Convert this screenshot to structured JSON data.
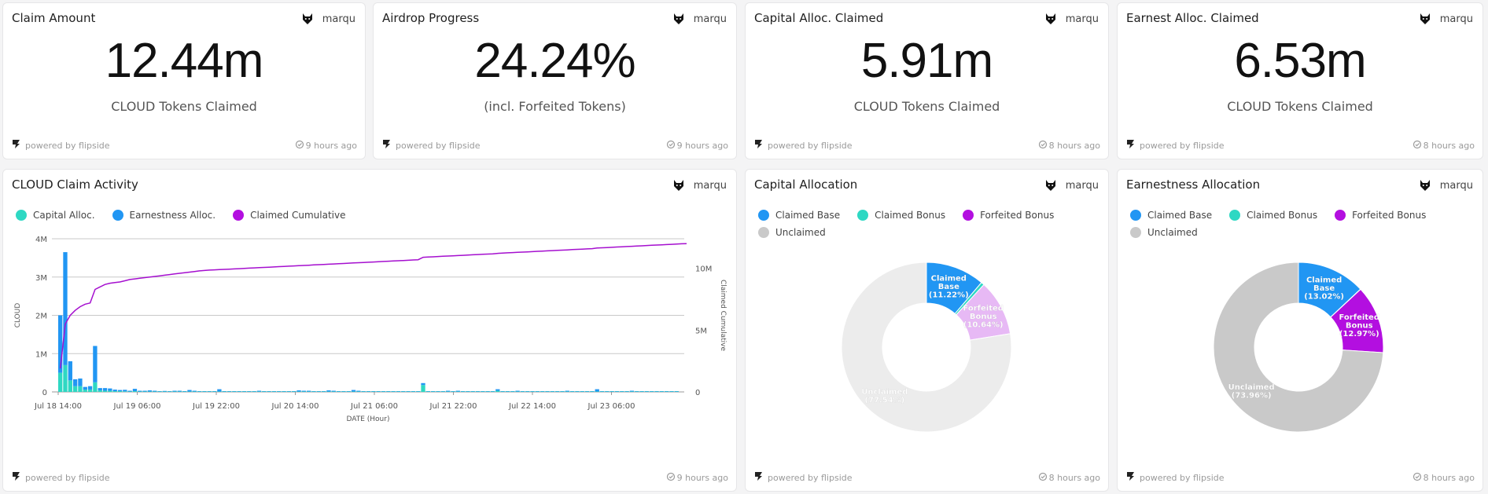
{
  "author": "marqu",
  "powered_by": "powered by flipside",
  "kpis": [
    {
      "title": "Claim Amount",
      "value": "12.44m",
      "subtitle": "CLOUD Tokens Claimed",
      "time": "9 hours ago"
    },
    {
      "title": "Airdrop Progress",
      "value": "24.24%",
      "subtitle": "(incl. Forfeited Tokens)",
      "time": "9 hours ago"
    },
    {
      "title": "Capital Alloc. Claimed",
      "value": "5.91m",
      "subtitle": "CLOUD Tokens Claimed",
      "time": "8 hours ago"
    },
    {
      "title": "Earnest Alloc. Claimed",
      "value": "6.53m",
      "subtitle": "CLOUD Tokens Claimed",
      "time": "8 hours ago"
    }
  ],
  "activity": {
    "title": "CLOUD Claim Activity",
    "time": "9 hours ago",
    "legend": [
      {
        "label": "Capital Alloc.",
        "color": "#2ed8c3"
      },
      {
        "label": "Earnestness Alloc.",
        "color": "#2196f3"
      },
      {
        "label": "Claimed Cumulative",
        "color": "#b30fe0"
      }
    ]
  },
  "capital": {
    "title": "Capital Allocation",
    "time": "8 hours ago",
    "legend": [
      {
        "label": "Claimed Base",
        "color": "#2196f3"
      },
      {
        "label": "Claimed Bonus",
        "color": "#2ed8c3"
      },
      {
        "label": "Forfeited Bonus",
        "color": "#b30fe0"
      },
      {
        "label": "Unclaimed",
        "color": "#c9c9c9"
      }
    ]
  },
  "earnest": {
    "title": "Earnestness Allocation",
    "time": "8 hours ago",
    "legend": [
      {
        "label": "Claimed Base",
        "color": "#2196f3"
      },
      {
        "label": "Claimed Bonus",
        "color": "#2ed8c3"
      },
      {
        "label": "Forfeited Bonus",
        "color": "#b30fe0"
      },
      {
        "label": "Unclaimed",
        "color": "#c9c9c9"
      }
    ]
  },
  "chart_data": [
    {
      "type": "bar",
      "title": "CLOUD Claim Activity",
      "xlabel": "DATE (Hour)",
      "ylabel": "CLOUD",
      "y2label": "Claimed Cumulative",
      "ylim": [
        0,
        4000000
      ],
      "y2lim": [
        0,
        12400000
      ],
      "yticks": [
        "0",
        "1M",
        "2M",
        "3M",
        "4M"
      ],
      "y2ticks": [
        "0",
        "5M",
        "10M"
      ],
      "xticks": [
        "Jul 18 14:00",
        "Jul 19 06:00",
        "Jul 19 22:00",
        "Jul 20 14:00",
        "Jul 21 06:00",
        "Jul 21 22:00",
        "Jul 22 14:00",
        "Jul 23 06:00"
      ],
      "grid": true,
      "legend": "top-left",
      "series": [
        {
          "name": "Capital Alloc.",
          "values": [
            500000,
            700000,
            300000,
            150000,
            150000,
            60000,
            60000,
            250000,
            40000,
            30000,
            30000,
            20000,
            20000,
            15000,
            10000,
            20000,
            10000,
            10000,
            10000,
            10000,
            10000,
            10000,
            10000,
            10000,
            10000,
            10000,
            10000,
            10000,
            10000,
            10000,
            10000,
            10000,
            10000,
            10000,
            10000,
            10000,
            10000,
            10000,
            10000,
            10000,
            10000,
            10000,
            10000,
            10000,
            10000,
            10000,
            10000,
            10000,
            10000,
            10000,
            10000,
            10000,
            10000,
            10000,
            10000,
            10000,
            10000,
            10000,
            10000,
            10000,
            10000,
            10000,
            10000,
            10000,
            10000,
            10000,
            10000,
            10000,
            10000,
            10000,
            10000,
            10000,
            10000,
            180000,
            10000,
            10000,
            10000,
            10000,
            10000,
            10000,
            10000,
            10000,
            10000,
            10000,
            10000,
            10000,
            10000,
            10000,
            30000,
            10000,
            10000,
            10000,
            10000,
            10000,
            10000,
            10000,
            10000,
            10000,
            10000,
            10000,
            10000,
            10000,
            10000,
            10000,
            10000,
            10000,
            10000,
            10000,
            10000,
            10000,
            10000,
            10000,
            10000,
            10000,
            10000,
            10000,
            10000,
            10000,
            10000,
            10000,
            10000,
            10000,
            10000,
            10000,
            10000
          ]
        },
        {
          "name": "Earnestness Alloc.",
          "values": [
            1500000,
            2950000,
            500000,
            180000,
            200000,
            70000,
            90000,
            950000,
            60000,
            70000,
            60000,
            40000,
            30000,
            40000,
            20000,
            60000,
            20000,
            20000,
            30000,
            20000,
            10000,
            15000,
            10000,
            20000,
            20000,
            10000,
            40000,
            20000,
            10000,
            10000,
            10000,
            10000,
            60000,
            10000,
            10000,
            10000,
            10000,
            10000,
            10000,
            10000,
            20000,
            10000,
            10000,
            10000,
            10000,
            10000,
            10000,
            10000,
            30000,
            20000,
            20000,
            10000,
            10000,
            10000,
            30000,
            20000,
            10000,
            10000,
            10000,
            40000,
            20000,
            10000,
            10000,
            10000,
            10000,
            10000,
            10000,
            10000,
            10000,
            10000,
            10000,
            10000,
            10000,
            50000,
            10000,
            10000,
            10000,
            10000,
            20000,
            10000,
            20000,
            10000,
            10000,
            10000,
            10000,
            10000,
            10000,
            10000,
            40000,
            10000,
            10000,
            10000,
            20000,
            10000,
            10000,
            10000,
            10000,
            10000,
            10000,
            10000,
            10000,
            10000,
            20000,
            10000,
            10000,
            10000,
            10000,
            10000,
            60000,
            10000,
            10000,
            10000,
            10000,
            10000,
            10000,
            20000,
            10000,
            10000,
            10000,
            10000,
            10000,
            10000,
            10000,
            10000,
            10000,
            10000,
            10000
          ]
        },
        {
          "name": "Claimed Cumulative",
          "values": [
            1900000,
            5500000,
            6200000,
            6600000,
            6900000,
            7100000,
            7200000,
            8300000,
            8500000,
            8700000,
            8800000,
            8850000,
            8900000,
            9000000,
            9100000,
            9150000,
            9200000,
            9250000,
            9300000,
            9350000,
            9400000,
            9450000,
            9500000,
            9550000,
            9600000,
            9650000,
            9700000,
            9750000,
            9800000,
            9830000,
            9860000,
            9880000,
            9900000,
            9920000,
            9940000,
            9960000,
            9980000,
            10000000,
            10020000,
            10040000,
            10060000,
            10080000,
            10100000,
            10120000,
            10140000,
            10160000,
            10180000,
            10200000,
            10220000,
            10240000,
            10260000,
            10280000,
            10300000,
            10320000,
            10340000,
            10360000,
            10380000,
            10400000,
            10420000,
            10440000,
            10460000,
            10480000,
            10500000,
            10520000,
            10540000,
            10560000,
            10580000,
            10600000,
            10620000,
            10640000,
            10660000,
            10680000,
            10700000,
            10900000,
            10920000,
            10940000,
            10960000,
            10980000,
            11000000,
            11020000,
            11040000,
            11060000,
            11080000,
            11100000,
            11120000,
            11140000,
            11160000,
            11180000,
            11220000,
            11240000,
            11260000,
            11280000,
            11300000,
            11320000,
            11340000,
            11360000,
            11380000,
            11400000,
            11420000,
            11440000,
            11460000,
            11480000,
            11500000,
            11520000,
            11540000,
            11560000,
            11580000,
            11600000,
            11650000,
            11670000,
            11690000,
            11710000,
            11730000,
            11750000,
            11770000,
            11790000,
            11810000,
            11830000,
            11850000,
            11870000,
            11890000,
            11910000,
            11930000,
            11950000,
            11970000,
            11990000,
            12000000
          ]
        }
      ]
    },
    {
      "type": "pie",
      "title": "Capital Allocation",
      "donut": true,
      "categories": [
        "Claimed Base",
        "Claimed Bonus",
        "Forfeited Bonus",
        "Unclaimed"
      ],
      "values": [
        11.22,
        0.6,
        10.64,
        77.54
      ],
      "labels": [
        "Claimed Base (11.22%)",
        "",
        "Forfeited Bonus (10.64%)",
        "Unclaimed (77.54%)"
      ]
    },
    {
      "type": "pie",
      "title": "Earnestness Allocation",
      "donut": true,
      "categories": [
        "Claimed Base",
        "Claimed Bonus",
        "Forfeited Bonus",
        "Unclaimed"
      ],
      "values": [
        13.02,
        0.05,
        12.97,
        73.96
      ],
      "labels": [
        "Claimed Base (13.02%)",
        "",
        "Forfeited Bonus (12.97%)",
        "Unclaimed (73.96%)"
      ]
    }
  ]
}
